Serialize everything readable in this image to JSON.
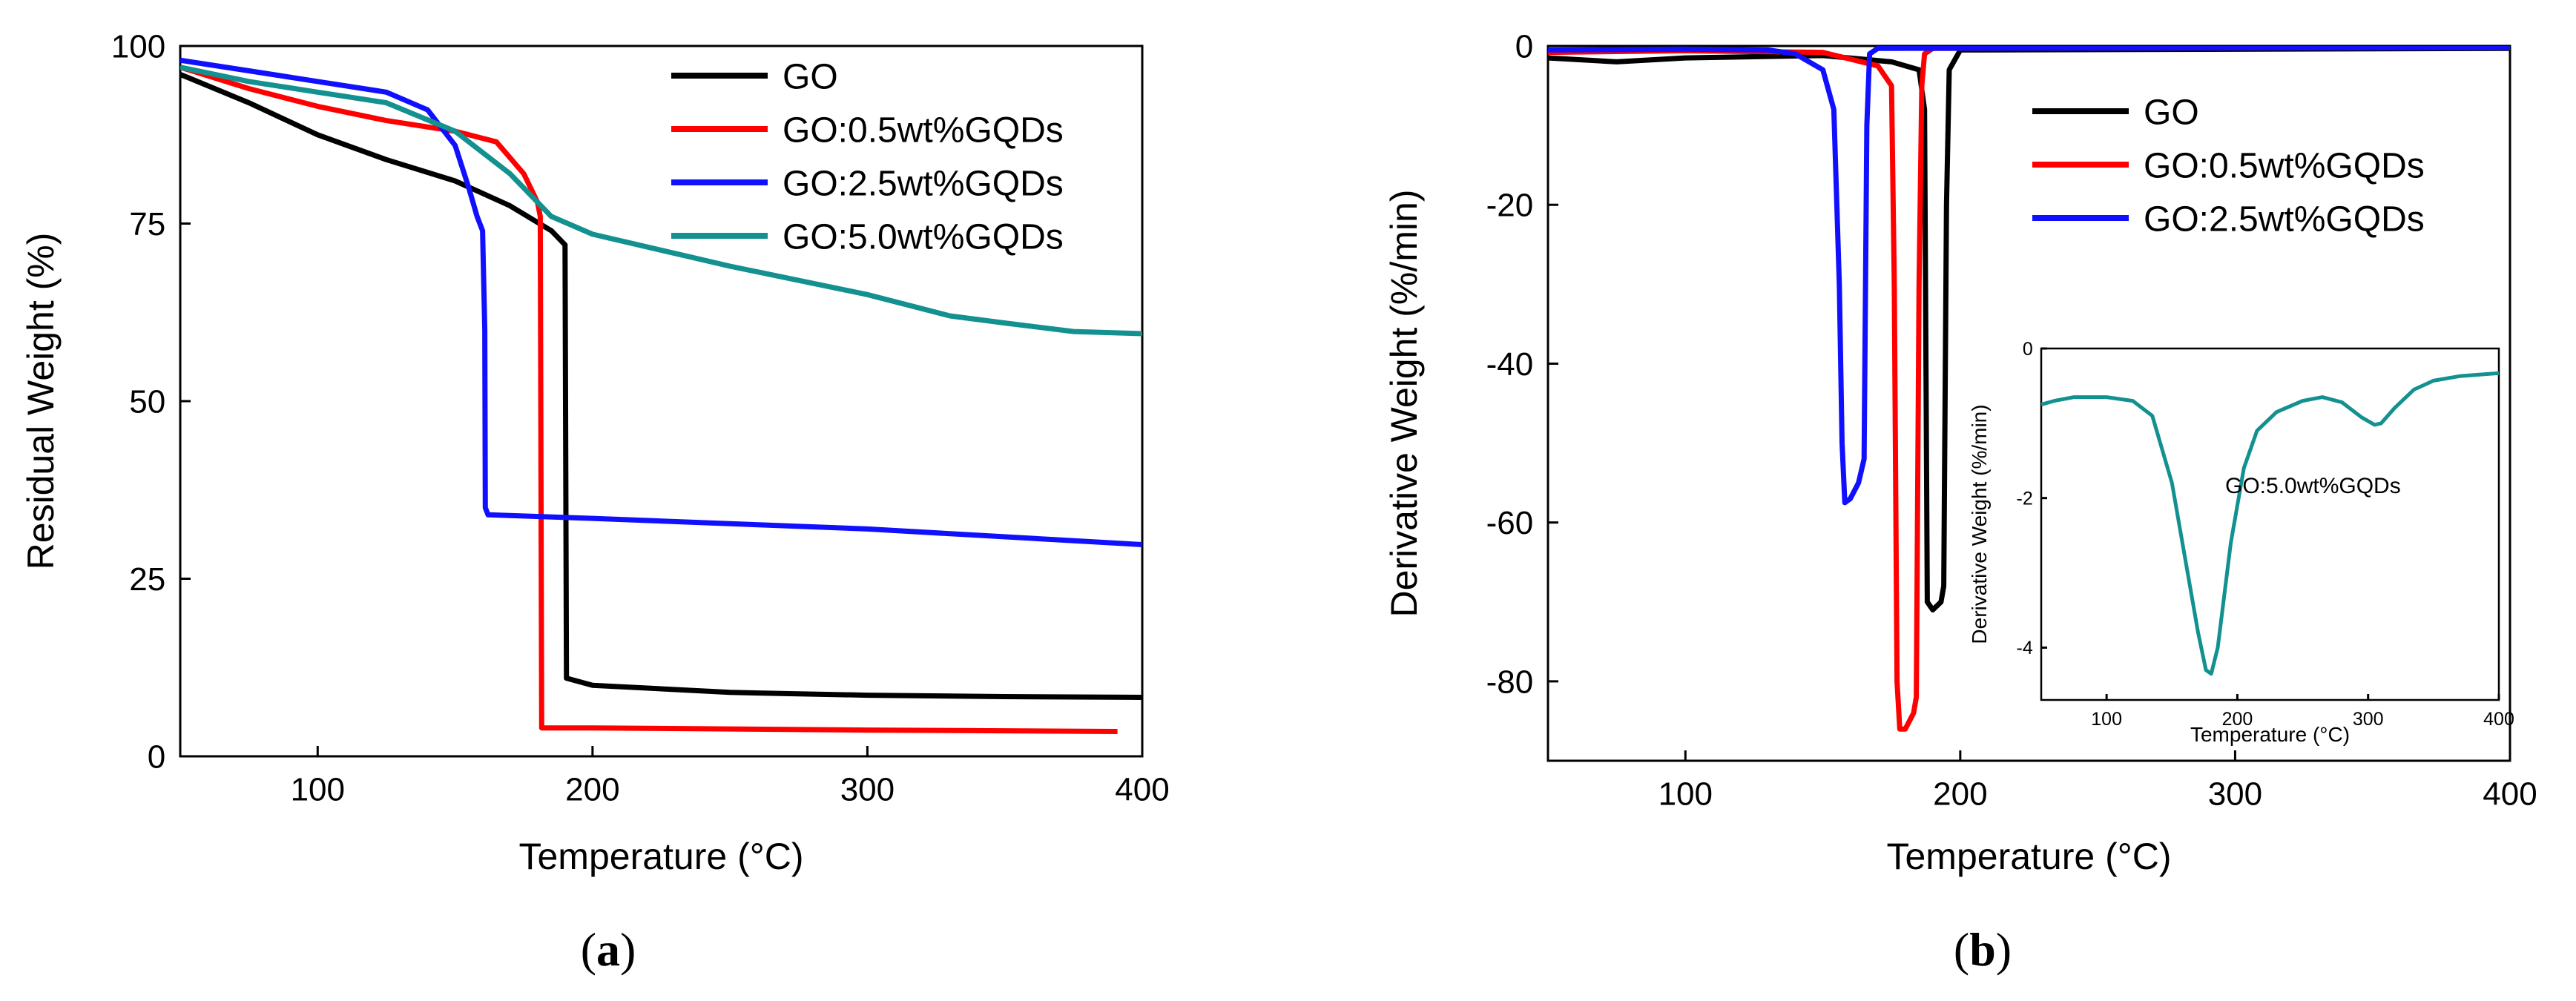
{
  "panels": [
    {
      "caption": "a",
      "chart_data": {
        "type": "line",
        "xlabel": "Temperature (°C)",
        "ylabel": "Residual Weight (%)",
        "xlim": [
          50,
          400
        ],
        "ylim": [
          0,
          100
        ],
        "xticks": [
          100,
          200,
          300,
          400
        ],
        "yticks": [
          0,
          25,
          50,
          75,
          100
        ],
        "legend": "top-right",
        "series": [
          {
            "name": "GO",
            "color": "#000000",
            "points": [
              [
                50,
                96
              ],
              [
                75,
                92
              ],
              [
                100,
                87.5
              ],
              [
                125,
                84
              ],
              [
                150,
                81
              ],
              [
                170,
                77.5
              ],
              [
                185,
                74
              ],
              [
                190,
                72
              ],
              [
                190.5,
                11
              ],
              [
                200,
                10
              ],
              [
                250,
                9
              ],
              [
                300,
                8.6
              ],
              [
                350,
                8.4
              ],
              [
                400,
                8.3
              ]
            ]
          },
          {
            "name": "GO:0.5wt%GQDs",
            "color": "#ff0000",
            "points": [
              [
                50,
                97
              ],
              [
                75,
                94
              ],
              [
                100,
                91.5
              ],
              [
                125,
                89.5
              ],
              [
                150,
                88
              ],
              [
                165,
                86.5
              ],
              [
                175,
                82
              ],
              [
                180,
                78
              ],
              [
                181,
                76
              ],
              [
                181.5,
                4
              ],
              [
                200,
                4
              ],
              [
                300,
                3.7
              ],
              [
                391,
                3.5
              ]
            ]
          },
          {
            "name": "GO:2.5wt%GQDs",
            "color": "#1010ff",
            "points": [
              [
                50,
                98
              ],
              [
                75,
                96.5
              ],
              [
                100,
                95
              ],
              [
                125,
                93.5
              ],
              [
                140,
                91
              ],
              [
                150,
                86
              ],
              [
                155,
                80
              ],
              [
                158,
                76
              ],
              [
                160,
                74
              ],
              [
                160.8,
                60
              ],
              [
                161,
                35
              ],
              [
                162,
                34
              ],
              [
                200,
                33.5
              ],
              [
                300,
                32
              ],
              [
                400,
                29.8
              ]
            ]
          },
          {
            "name": "GO:5.0wt%GQDs",
            "color": "#139090",
            "points": [
              [
                50,
                97
              ],
              [
                75,
                95
              ],
              [
                100,
                93.5
              ],
              [
                125,
                92
              ],
              [
                150,
                88
              ],
              [
                170,
                82
              ],
              [
                185,
                76
              ],
              [
                200,
                73.5
              ],
              [
                250,
                69
              ],
              [
                300,
                65
              ],
              [
                330,
                62
              ],
              [
                350,
                61
              ],
              [
                375,
                59.8
              ],
              [
                400,
                59.5
              ]
            ]
          }
        ]
      }
    },
    {
      "caption": "b",
      "chart_data": {
        "type": "line",
        "xlabel": "Temperature (°C)",
        "ylabel": "Derivative Weight (%/min)",
        "xlim": [
          50,
          400
        ],
        "ylim": [
          -90,
          0
        ],
        "xticks": [
          100,
          200,
          300,
          400
        ],
        "yticks": [
          0,
          -20,
          -40,
          -60,
          -80
        ],
        "legend": "top-right",
        "series": [
          {
            "name": "GO",
            "color": "#000000",
            "points": [
              [
                50,
                -1.5
              ],
              [
                75,
                -2
              ],
              [
                100,
                -1.5
              ],
              [
                150,
                -1.2
              ],
              [
                175,
                -2
              ],
              [
                185,
                -3
              ],
              [
                187,
                -8
              ],
              [
                188,
                -70
              ],
              [
                190,
                -71
              ],
              [
                193,
                -70
              ],
              [
                194,
                -68
              ],
              [
                195,
                -20
              ],
              [
                196,
                -3
              ],
              [
                200,
                -0.5
              ],
              [
                400,
                -0.3
              ]
            ]
          },
          {
            "name": "GO:0.5wt%GQDs",
            "color": "#ff0000",
            "points": [
              [
                50,
                -0.8
              ],
              [
                100,
                -0.6
              ],
              [
                150,
                -0.8
              ],
              [
                170,
                -2.5
              ],
              [
                175,
                -5
              ],
              [
                176,
                -30
              ],
              [
                177,
                -80
              ],
              [
                178,
                -86
              ],
              [
                180,
                -86
              ],
              [
                183,
                -84
              ],
              [
                184,
                -82
              ],
              [
                185,
                -30
              ],
              [
                186,
                -5
              ],
              [
                187,
                -1
              ],
              [
                190,
                -0.3
              ],
              [
                400,
                -0.2
              ]
            ]
          },
          {
            "name": "GO:2.5wt%GQDs",
            "color": "#1010ff",
            "points": [
              [
                50,
                -0.5
              ],
              [
                100,
                -0.4
              ],
              [
                130,
                -0.5
              ],
              [
                140,
                -1
              ],
              [
                150,
                -3
              ],
              [
                154,
                -8
              ],
              [
                156,
                -30
              ],
              [
                157,
                -50
              ],
              [
                158,
                -57.5
              ],
              [
                160,
                -57
              ],
              [
                163,
                -55
              ],
              [
                165,
                -52
              ],
              [
                166,
                -10
              ],
              [
                167,
                -1
              ],
              [
                170,
                -0.3
              ],
              [
                400,
                -0.2
              ]
            ]
          }
        ],
        "inset": {
          "type": "line",
          "label": "GO:5.0wt%GQDs",
          "xlabel": "Temperature (°C)",
          "ylabel": "Derivative Weight (%/min)",
          "xlim": [
            50,
            400
          ],
          "ylim": [
            -4.7,
            0
          ],
          "xticks": [
            100,
            200,
            300,
            400
          ],
          "yticks": [
            0,
            -2,
            -4
          ],
          "series": [
            {
              "name": "GO:5.0wt%GQDs",
              "color": "#139090",
              "points": [
                [
                  50,
                  -0.75
                ],
                [
                  60,
                  -0.7
                ],
                [
                  75,
                  -0.65
                ],
                [
                  100,
                  -0.65
                ],
                [
                  120,
                  -0.7
                ],
                [
                  135,
                  -0.9
                ],
                [
                  150,
                  -1.8
                ],
                [
                  160,
                  -2.8
                ],
                [
                  170,
                  -3.8
                ],
                [
                  176,
                  -4.3
                ],
                [
                  180,
                  -4.35
                ],
                [
                  185,
                  -4.0
                ],
                [
                  195,
                  -2.6
                ],
                [
                  205,
                  -1.6
                ],
                [
                  215,
                  -1.1
                ],
                [
                  230,
                  -0.85
                ],
                [
                  250,
                  -0.7
                ],
                [
                  265,
                  -0.65
                ],
                [
                  280,
                  -0.72
                ],
                [
                  295,
                  -0.92
                ],
                [
                  305,
                  -1.02
                ],
                [
                  310,
                  -1.0
                ],
                [
                  320,
                  -0.8
                ],
                [
                  335,
                  -0.55
                ],
                [
                  350,
                  -0.43
                ],
                [
                  370,
                  -0.37
                ],
                [
                  400,
                  -0.33
                ]
              ]
            }
          ]
        }
      }
    }
  ]
}
